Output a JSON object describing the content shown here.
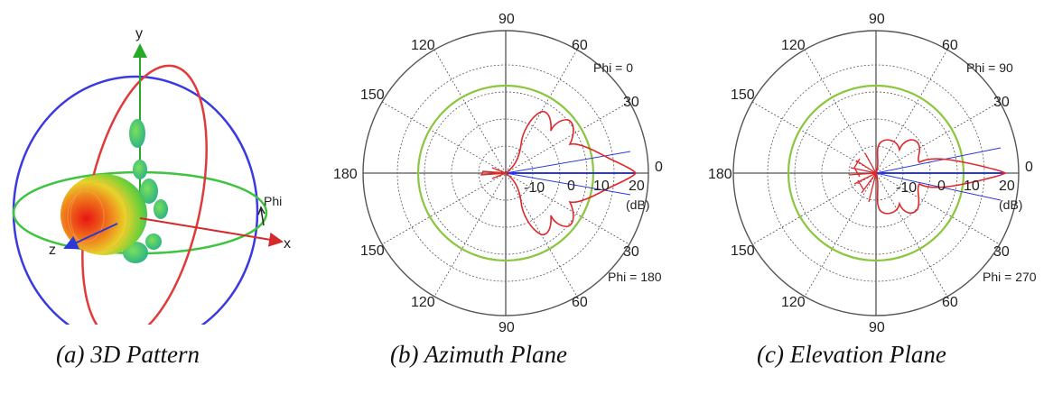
{
  "panels": [
    {
      "id": "a",
      "caption": "(a) 3D Pattern",
      "axis_labels": {
        "x": "x",
        "y": "y",
        "z": "z",
        "phi": "Phi"
      },
      "colors": {
        "x_axis": "#d42a2a",
        "y_axis": "#27a827",
        "z_axis": "#2a3ad4",
        "azimuth_ring": "#3a3ae0",
        "elevation_ring": "#e03a3a",
        "horizontal_ring": "#3ec43e"
      }
    },
    {
      "id": "b",
      "caption": "(b) Azimuth Plane",
      "angle_labels": {
        "top": "90",
        "upper_left_1": "120",
        "upper_left_2": "150",
        "left": "180",
        "lower_left_2": "150",
        "lower_left_1": "120",
        "bottom": "90",
        "lower_right_1": "60",
        "lower_right_2": "30",
        "right": "0",
        "upper_right_2": "30",
        "upper_right_1": "60"
      },
      "radial_labels": [
        "-10",
        "0",
        "10",
        "20"
      ],
      "unit": "(dB)",
      "phi_labels": [
        "Phi = 0",
        "Phi = 180"
      ]
    },
    {
      "id": "c",
      "caption": "(c) Elevation Plane",
      "angle_labels": {
        "top": "90",
        "upper_left_1": "120",
        "upper_left_2": "150",
        "left": "180",
        "lower_left_2": "150",
        "lower_left_1": "120",
        "bottom": "90",
        "lower_right_1": "60",
        "lower_right_2": "30",
        "right": "0",
        "upper_right_2": "30",
        "upper_right_1": "60"
      },
      "radial_labels": [
        "-10",
        "0",
        "10",
        "20"
      ],
      "unit": "(dB)",
      "phi_labels": [
        "Phi = 90",
        "Phi = 270"
      ]
    }
  ],
  "colors": {
    "pattern": "#e0282a",
    "reference_circle": "#8cc63e",
    "grid": "#555555",
    "beam_line": "#2a3ad4"
  }
}
